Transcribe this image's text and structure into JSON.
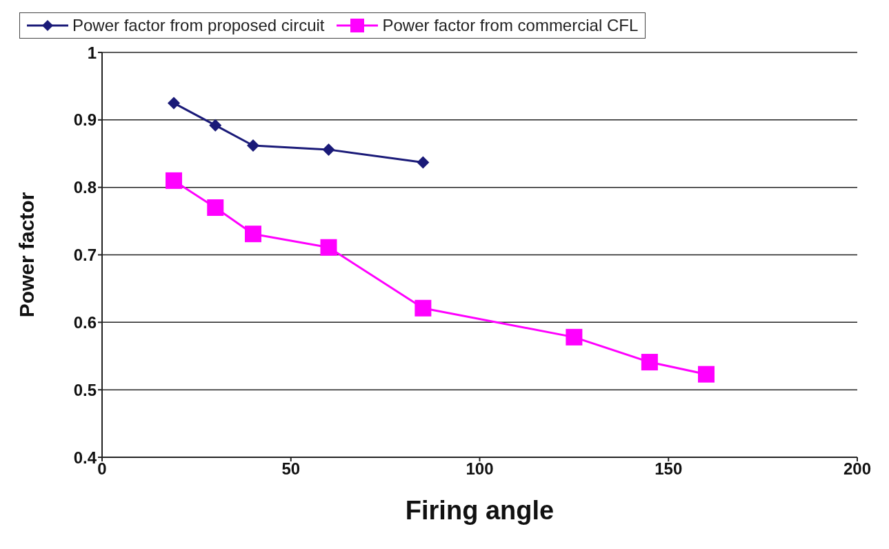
{
  "chart_data": {
    "type": "line",
    "xlabel": "Firing angle",
    "ylabel": "Power factor",
    "xlim": [
      0,
      200
    ],
    "xticks": [
      0,
      50,
      100,
      150,
      200
    ],
    "ylim": [
      0.4,
      1
    ],
    "yticks": [
      0.4,
      0.5,
      0.6,
      0.7,
      0.8,
      0.9,
      1
    ],
    "grid": "y",
    "legend": "top",
    "series": [
      {
        "name": "Power factor from proposed circuit",
        "color": "#1a1a78",
        "marker": "diamond",
        "x": [
          19,
          30,
          40,
          60,
          85
        ],
        "values": [
          0.925,
          0.892,
          0.862,
          0.856,
          0.837
        ]
      },
      {
        "name": "Power factor from commercial CFL",
        "color": "#ff00ff",
        "marker": "square",
        "x": [
          19,
          30,
          40,
          60,
          85,
          125,
          145,
          160
        ],
        "values": [
          0.81,
          0.77,
          0.731,
          0.711,
          0.621,
          0.578,
          0.541,
          0.523
        ]
      }
    ]
  }
}
